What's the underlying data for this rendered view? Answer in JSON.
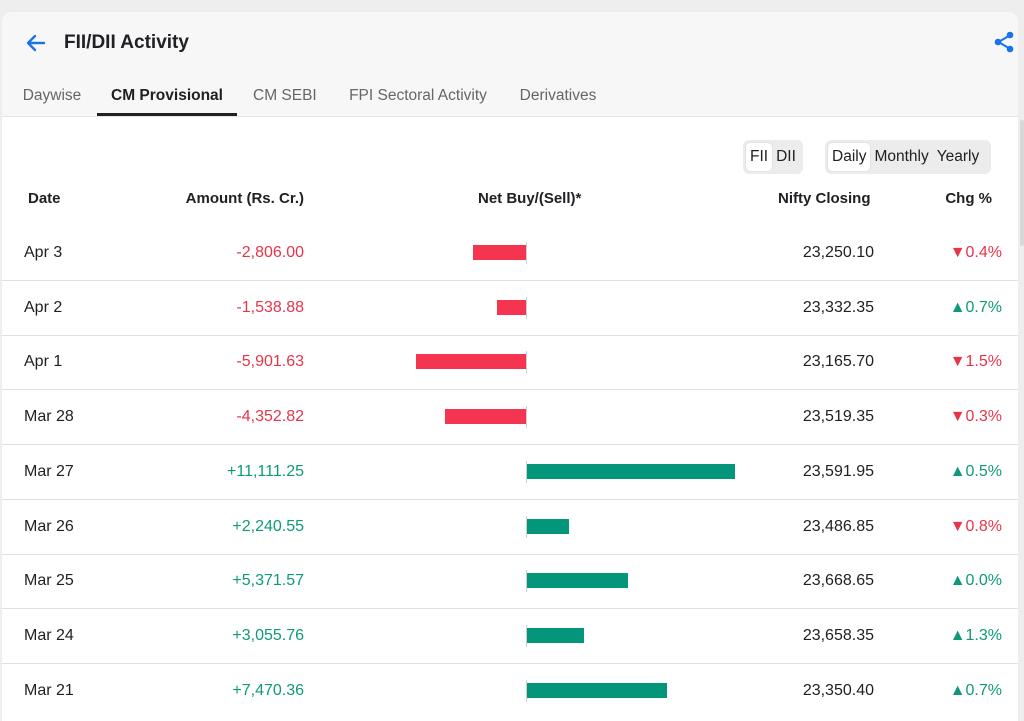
{
  "header": {
    "title": "FII/DII Activity",
    "back_icon": "arrow-left-icon",
    "share_icon": "share-icon",
    "accent_color": "#1a73e8"
  },
  "tabs": [
    {
      "label": "Daywise",
      "active": false
    },
    {
      "label": "CM Provisional",
      "active": true
    },
    {
      "label": "CM SEBI",
      "active": false
    },
    {
      "label": "FPI Sectoral Activity",
      "active": false
    },
    {
      "label": "Derivatives",
      "active": false
    }
  ],
  "investor_toggle": {
    "options": [
      "FII",
      "DII"
    ],
    "selected": "FII"
  },
  "period_toggle": {
    "options": [
      "Daily",
      "Monthly",
      "Yearly"
    ],
    "selected": "Daily"
  },
  "table": {
    "columns": {
      "date": "Date",
      "amount": "Amount (Rs. Cr.)",
      "net": "Net Buy/(Sell)*",
      "nifty": "Nifty Closing",
      "chg": "Chg %"
    },
    "colors": {
      "positive": "#0e9a78",
      "negative": "#e8344a",
      "positive_bar": "#04967a",
      "negative_bar": "#f5354f"
    },
    "rows": [
      {
        "date": "Apr 3",
        "amount": "-2,806.00",
        "value": -2806.0,
        "nifty": "23,250.10",
        "chg": "▼0.4%",
        "chg_dir": "down"
      },
      {
        "date": "Apr 2",
        "amount": "-1,538.88",
        "value": -1538.88,
        "nifty": "23,332.35",
        "chg": "▲0.7%",
        "chg_dir": "up"
      },
      {
        "date": "Apr 1",
        "amount": "-5,901.63",
        "value": -5901.63,
        "nifty": "23,165.70",
        "chg": "▼1.5%",
        "chg_dir": "down"
      },
      {
        "date": "Mar 28",
        "amount": "-4,352.82",
        "value": -4352.82,
        "nifty": "23,519.35",
        "chg": "▼0.3%",
        "chg_dir": "down"
      },
      {
        "date": "Mar 27",
        "amount": "+11,111.25",
        "value": 11111.25,
        "nifty": "23,591.95",
        "chg": "▲0.5%",
        "chg_dir": "up"
      },
      {
        "date": "Mar 26",
        "amount": "+2,240.55",
        "value": 2240.55,
        "nifty": "23,486.85",
        "chg": "▼0.8%",
        "chg_dir": "down"
      },
      {
        "date": "Mar 25",
        "amount": "+5,371.57",
        "value": 5371.57,
        "nifty": "23,668.65",
        "chg": "▲0.0%",
        "chg_dir": "up"
      },
      {
        "date": "Mar 24",
        "amount": "+3,055.76",
        "value": 3055.76,
        "nifty": "23,658.35",
        "chg": "▲1.3%",
        "chg_dir": "up"
      },
      {
        "date": "Mar 21",
        "amount": "+7,470.36",
        "value": 7470.36,
        "nifty": "23,350.40",
        "chg": "▲0.7%",
        "chg_dir": "up"
      }
    ]
  }
}
